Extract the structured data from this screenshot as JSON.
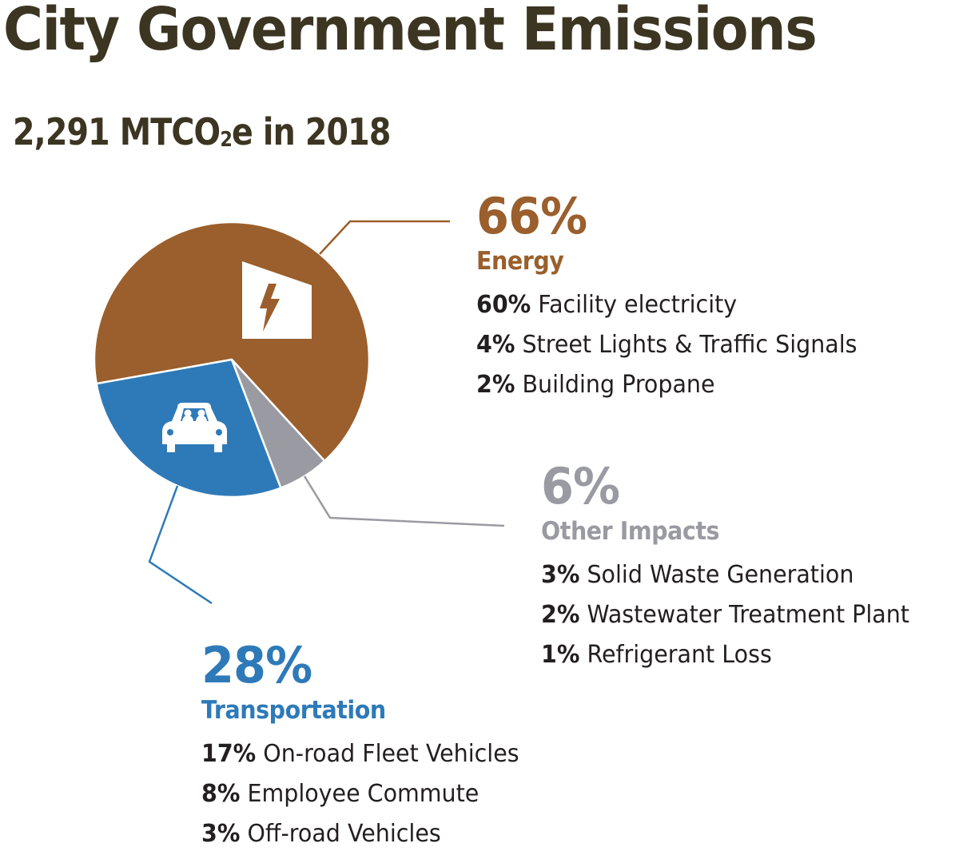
{
  "title": "City Government Emissions",
  "subtitle": {
    "prefix": "2,291 MTCO",
    "subscript": "2",
    "suffix": "e in 2018"
  },
  "colors": {
    "title": "#3b3522",
    "energy": "#9a5f2c",
    "transportation": "#2e7ab8",
    "other": "#9a9aa2",
    "text": "#231f20"
  },
  "chart_data": {
    "type": "pie",
    "title": "City Government Emissions",
    "subtitle": "2,291 MTCO2e in 2018",
    "total": 2291,
    "unit": "MTCO2e",
    "year": 2018,
    "slices": [
      {
        "key": "energy",
        "label": "Energy",
        "value": 66,
        "percent_label": "66%",
        "color": "#9a5f2c",
        "icon": "building-lightning-icon",
        "breakdown": [
          {
            "percent": "60%",
            "label": "Facility electricity"
          },
          {
            "percent": "4%",
            "label": "Street Lights & Traffic Signals"
          },
          {
            "percent": "2%",
            "label": "Building Propane"
          }
        ]
      },
      {
        "key": "other",
        "label": "Other Impacts",
        "value": 6,
        "percent_label": "6%",
        "color": "#9a9aa2",
        "icon": null,
        "breakdown": [
          {
            "percent": "3%",
            "label": "Solid Waste Generation"
          },
          {
            "percent": "2%",
            "label": "Wastewater Treatment Plant"
          },
          {
            "percent": "1%",
            "label": "Refrigerant Loss"
          }
        ]
      },
      {
        "key": "transportation",
        "label": "Transportation",
        "value": 28,
        "percent_label": "28%",
        "color": "#2e7ab8",
        "icon": "car-icon",
        "breakdown": [
          {
            "percent": "17%",
            "label": "On-road Fleet Vehicles"
          },
          {
            "percent": "8%",
            "label": "Employee Commute"
          },
          {
            "percent": "3%",
            "label": "Off-road Vehicles"
          }
        ]
      }
    ]
  }
}
